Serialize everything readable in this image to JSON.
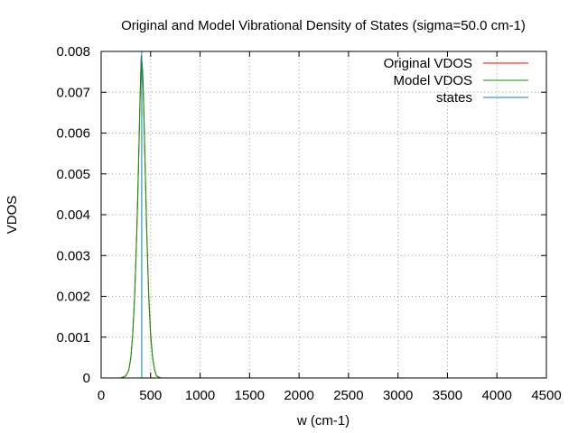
{
  "chart_data": {
    "type": "line",
    "title": "Original and Model Vibrational Density of States (sigma=50.0 cm-1)",
    "xlabel": "w (cm-1)",
    "ylabel": "VDOS",
    "xlim": [
      0,
      4500
    ],
    "ylim": [
      0,
      0.008
    ],
    "xticks": [
      0,
      500,
      1000,
      1500,
      2000,
      2500,
      3000,
      3500,
      4000,
      4500
    ],
    "yticks": [
      0,
      0.001,
      0.002,
      0.003,
      0.004,
      0.005,
      0.006,
      0.007,
      0.008
    ],
    "xtick_labels": [
      "0",
      "500",
      "1000",
      "1500",
      "2000",
      "2500",
      "3000",
      "3500",
      "4000",
      "4500"
    ],
    "ytick_labels": [
      "0",
      "0.001",
      "0.002",
      "0.003",
      "0.004",
      "0.005",
      "0.006",
      "0.007",
      "0.008"
    ],
    "grid": true,
    "legend_position": "top-right",
    "series": [
      {
        "name": "Original VDOS",
        "color": "#ff0000",
        "x": [
          200,
          250,
          280,
          300,
          320,
          340,
          360,
          370,
          380,
          390,
          400,
          405,
          410,
          420,
          430,
          440,
          460,
          480,
          500,
          520,
          540,
          560,
          600
        ],
        "y": [
          0.0,
          5e-05,
          0.0002,
          0.0005,
          0.0011,
          0.0021,
          0.0036,
          0.0045,
          0.0055,
          0.0066,
          0.0075,
          0.0079,
          0.0078,
          0.0075,
          0.0067,
          0.0057,
          0.0037,
          0.0021,
          0.0011,
          0.0005,
          0.0002,
          5e-05,
          0.0
        ]
      },
      {
        "name": "Model VDOS",
        "color": "#00a000",
        "x": [
          200,
          250,
          280,
          300,
          320,
          340,
          360,
          370,
          380,
          390,
          400,
          405,
          410,
          420,
          430,
          440,
          460,
          480,
          500,
          520,
          540,
          560,
          600
        ],
        "y": [
          0.0,
          5e-05,
          0.0002,
          0.0005,
          0.0011,
          0.0021,
          0.0035,
          0.0044,
          0.0054,
          0.0065,
          0.0074,
          0.0078,
          0.0078,
          0.0074,
          0.0066,
          0.0056,
          0.0036,
          0.002,
          0.001,
          0.0005,
          0.0002,
          5e-05,
          0.0
        ]
      }
    ],
    "states": {
      "name": "states",
      "color": "#0080c0",
      "x": [
        410
      ],
      "y": [
        0.008
      ]
    }
  }
}
